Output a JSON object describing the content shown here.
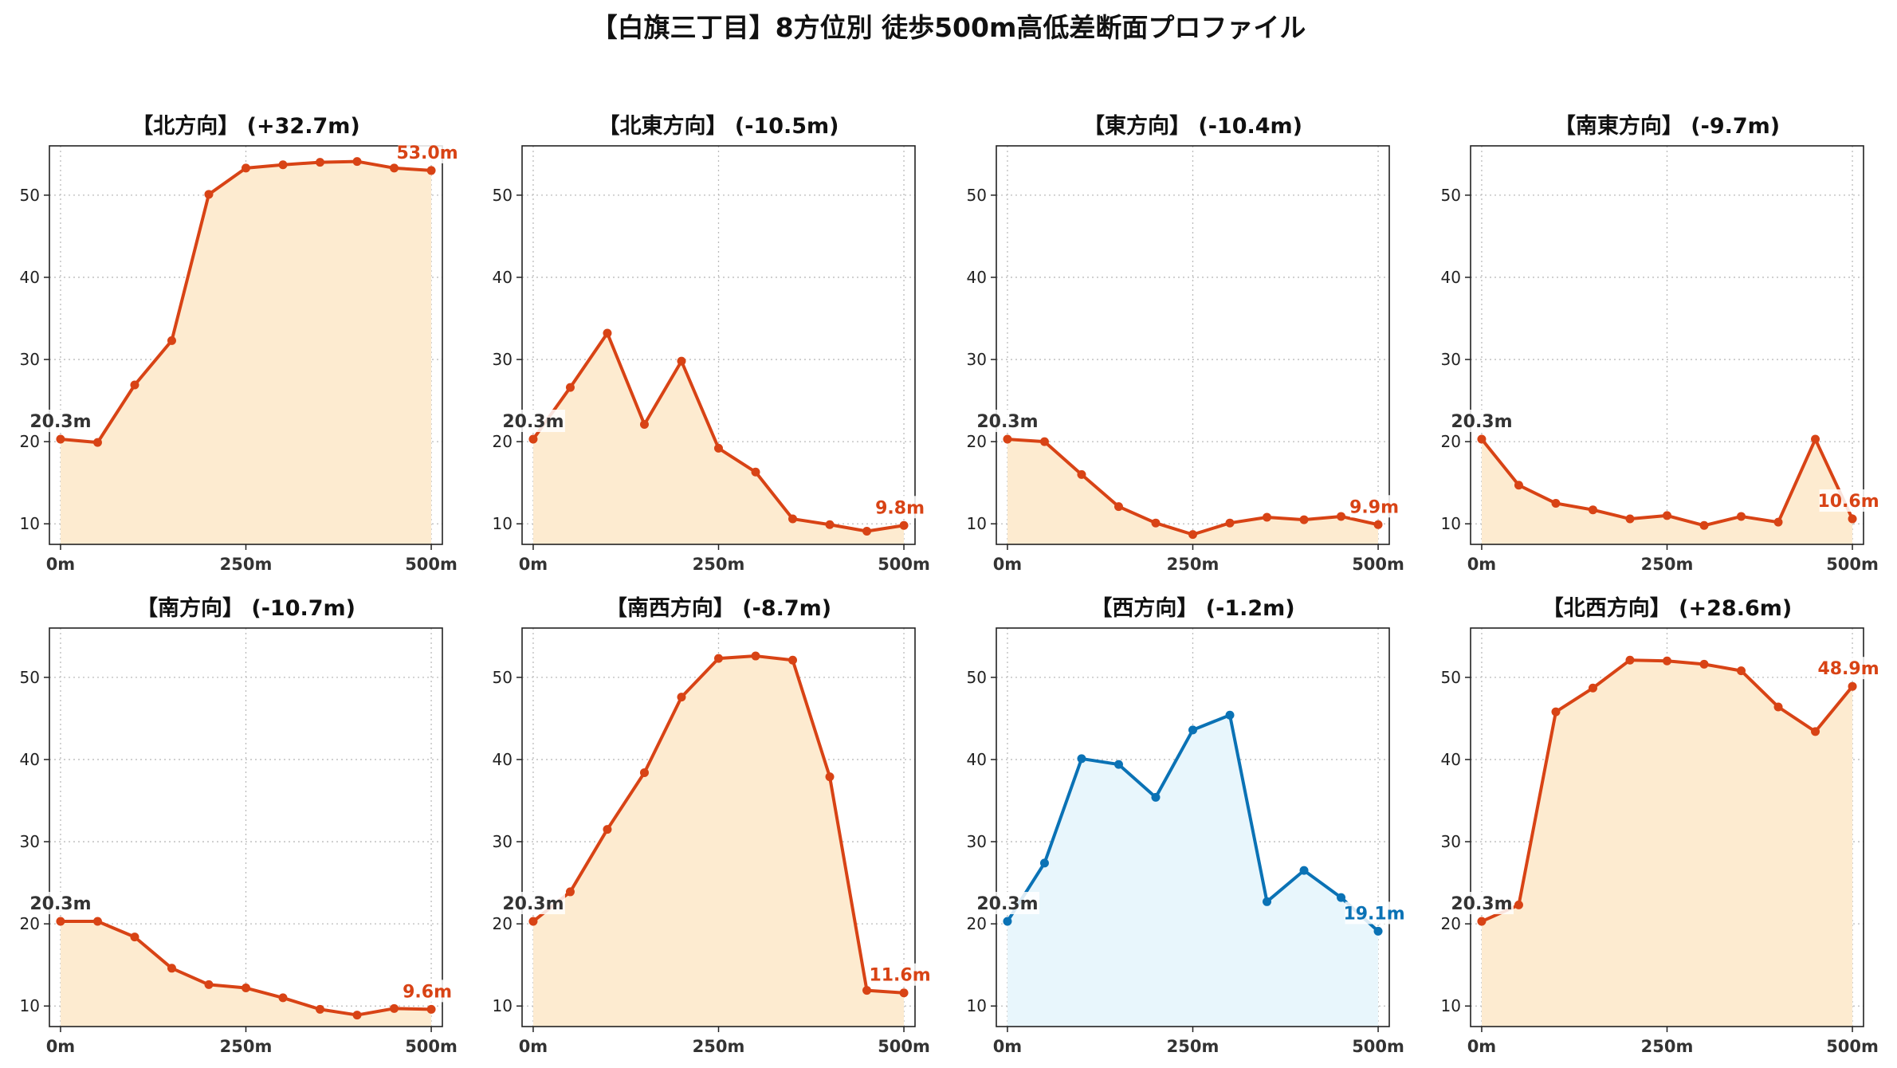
{
  "figure": {
    "title": "【白旗三丁目】8方位別 徒歩500m高低差断面プロファイル"
  },
  "colors": {
    "down": "#d84315",
    "down_fill": "#fdebd0",
    "up": "#0a72b5",
    "up_fill": "#e8f6fc",
    "start_label": "#333333"
  },
  "chart_data": [
    {
      "type": "area",
      "title": "【北方向】 (+32.7m)",
      "style": "down",
      "x": [
        0,
        50,
        100,
        150,
        200,
        250,
        300,
        350,
        400,
        450,
        500
      ],
      "y": [
        20.3,
        19.9,
        26.9,
        32.3,
        50.1,
        53.3,
        53.7,
        54.0,
        54.1,
        53.3,
        53.0
      ],
      "start_label": "20.3m",
      "end_label": "53.0m",
      "xticks": [
        "0m",
        "250m",
        "500m"
      ],
      "yticks": [
        10,
        20,
        30,
        40,
        50
      ],
      "ylim": [
        7.5,
        56
      ],
      "grid": true
    },
    {
      "type": "area",
      "title": "【北東方向】 (-10.5m)",
      "style": "down",
      "x": [
        0,
        50,
        100,
        150,
        200,
        250,
        300,
        350,
        400,
        450,
        500
      ],
      "y": [
        20.3,
        26.6,
        33.2,
        22.1,
        29.8,
        19.2,
        16.3,
        10.6,
        9.9,
        9.1,
        9.8
      ],
      "start_label": "20.3m",
      "end_label": "9.8m",
      "xticks": [
        "0m",
        "250m",
        "500m"
      ],
      "yticks": [
        10,
        20,
        30,
        40,
        50
      ],
      "ylim": [
        7.5,
        56
      ],
      "grid": true
    },
    {
      "type": "area",
      "title": "【東方向】 (-10.4m)",
      "style": "down",
      "x": [
        0,
        50,
        100,
        150,
        200,
        250,
        300,
        350,
        400,
        450,
        500
      ],
      "y": [
        20.3,
        20.0,
        16.0,
        12.1,
        10.1,
        8.7,
        10.1,
        10.8,
        10.5,
        10.9,
        9.9
      ],
      "start_label": "20.3m",
      "end_label": "9.9m",
      "xticks": [
        "0m",
        "250m",
        "500m"
      ],
      "yticks": [
        10,
        20,
        30,
        40,
        50
      ],
      "ylim": [
        7.5,
        56
      ],
      "grid": true
    },
    {
      "type": "area",
      "title": "【南東方向】 (-9.7m)",
      "style": "down",
      "x": [
        0,
        50,
        100,
        150,
        200,
        250,
        300,
        350,
        400,
        450,
        500
      ],
      "y": [
        20.3,
        14.7,
        12.5,
        11.7,
        10.6,
        11.0,
        9.8,
        10.9,
        10.2,
        20.3,
        10.6
      ],
      "start_label": "20.3m",
      "end_label": "10.6m",
      "xticks": [
        "0m",
        "250m",
        "500m"
      ],
      "yticks": [
        10,
        20,
        30,
        40,
        50
      ],
      "ylim": [
        7.5,
        56
      ],
      "grid": true
    },
    {
      "type": "area",
      "title": "【南方向】 (-10.7m)",
      "style": "down",
      "x": [
        0,
        50,
        100,
        150,
        200,
        250,
        300,
        350,
        400,
        450,
        500
      ],
      "y": [
        20.3,
        20.3,
        18.4,
        14.6,
        12.6,
        12.2,
        11.0,
        9.6,
        8.9,
        9.7,
        9.6
      ],
      "start_label": "20.3m",
      "end_label": "9.6m",
      "xticks": [
        "0m",
        "250m",
        "500m"
      ],
      "yticks": [
        10,
        20,
        30,
        40,
        50
      ],
      "ylim": [
        7.5,
        56
      ],
      "grid": true
    },
    {
      "type": "area",
      "title": "【南西方向】 (-8.7m)",
      "style": "down",
      "x": [
        0,
        50,
        100,
        150,
        200,
        250,
        300,
        350,
        400,
        450,
        500
      ],
      "y": [
        20.3,
        23.9,
        31.5,
        38.4,
        47.6,
        52.3,
        52.6,
        52.1,
        37.9,
        11.9,
        11.6
      ],
      "start_label": "20.3m",
      "end_label": "11.6m",
      "xticks": [
        "0m",
        "250m",
        "500m"
      ],
      "yticks": [
        10,
        20,
        30,
        40,
        50
      ],
      "ylim": [
        7.5,
        56
      ],
      "grid": true
    },
    {
      "type": "area",
      "title": "【西方向】 (-1.2m)",
      "style": "up",
      "x": [
        0,
        50,
        100,
        150,
        200,
        250,
        300,
        350,
        400,
        450,
        500
      ],
      "y": [
        20.3,
        27.4,
        40.1,
        39.4,
        35.4,
        43.6,
        45.4,
        22.7,
        26.5,
        23.2,
        19.1
      ],
      "start_label": "20.3m",
      "end_label": "19.1m",
      "xticks": [
        "0m",
        "250m",
        "500m"
      ],
      "yticks": [
        10,
        20,
        30,
        40,
        50
      ],
      "ylim": [
        7.5,
        56
      ],
      "grid": true
    },
    {
      "type": "area",
      "title": "【北西方向】 (+28.6m)",
      "style": "down",
      "x": [
        0,
        50,
        100,
        150,
        200,
        250,
        300,
        350,
        400,
        450,
        500
      ],
      "y": [
        20.3,
        22.3,
        45.8,
        48.7,
        52.1,
        52.0,
        51.6,
        50.8,
        46.4,
        43.4,
        48.9
      ],
      "start_label": "20.3m",
      "end_label": "48.9m",
      "xticks": [
        "0m",
        "250m",
        "500m"
      ],
      "yticks": [
        10,
        20,
        30,
        40,
        50
      ],
      "ylim": [
        7.5,
        56
      ],
      "grid": true
    }
  ]
}
